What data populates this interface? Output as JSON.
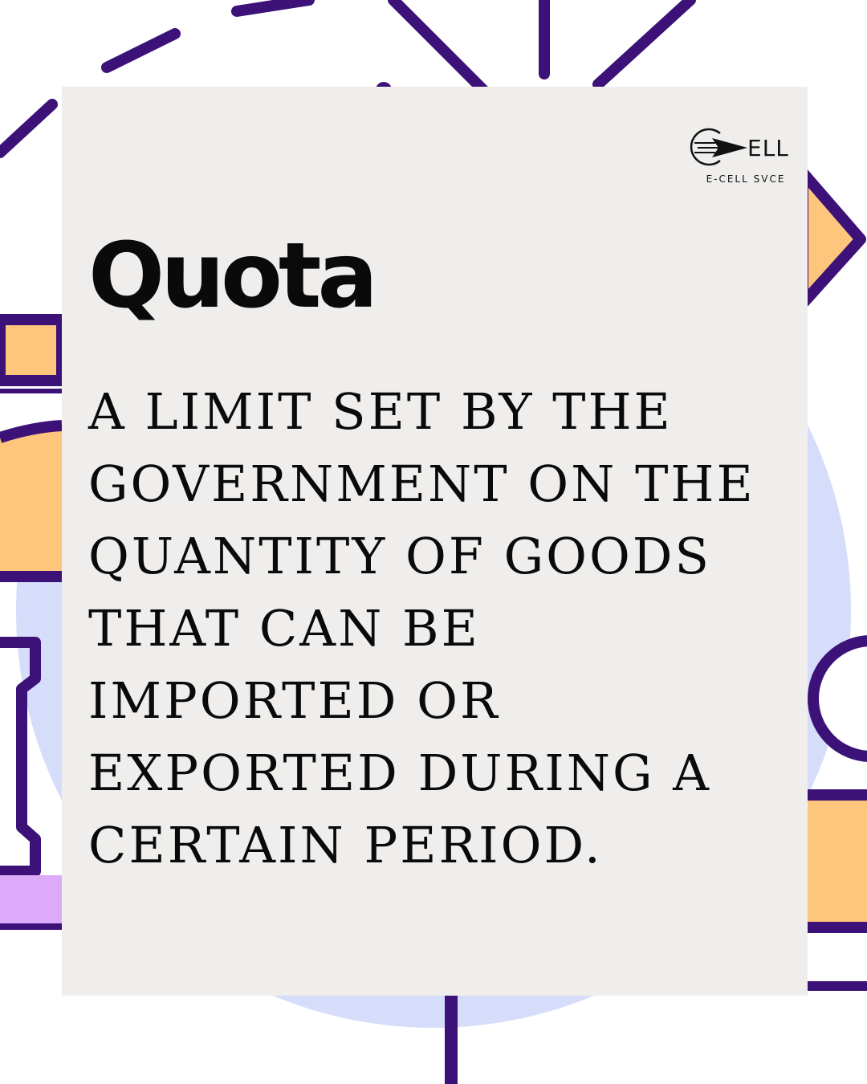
{
  "colors": {
    "background": "#ffffff",
    "card": "#efeeec",
    "purple": "#3d1278",
    "orange": "#fec57c",
    "light_blue": "#d5ddfb",
    "lilac": "#dcaaf8",
    "text": "#0a0a0a"
  },
  "logo": {
    "mark": "ELL",
    "caption": "E-CELL SVCE",
    "icon": "paper-plane-icon"
  },
  "title": "Quota",
  "definition": "A LIMIT SET BY THE GOVERNMENT ON THE QUANTITY OF GOODS THAT CAN BE IMPORTED OR EXPORTED DURING A CERTAIN PERIOD."
}
